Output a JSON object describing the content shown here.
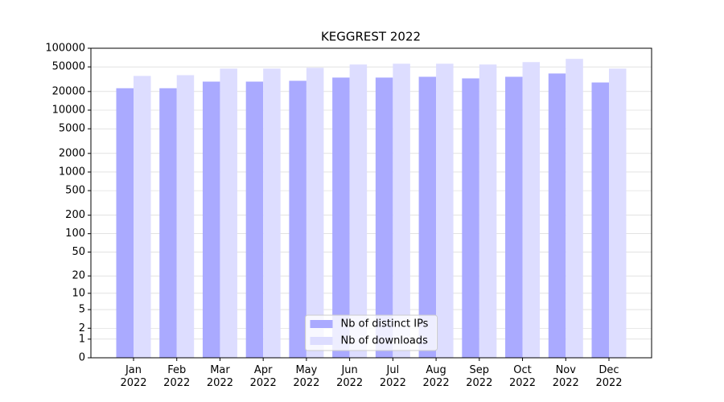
{
  "chart_data": {
    "type": "bar",
    "title": "KEGGREST 2022",
    "categories": [
      "Jan 2022",
      "Feb 2022",
      "Mar 2022",
      "Apr 2022",
      "May 2022",
      "Jun 2022",
      "Jul 2022",
      "Aug 2022",
      "Sep 2022",
      "Oct 2022",
      "Nov 2022",
      "Dec 2022"
    ],
    "series": [
      {
        "name": "Nb of distinct IPs",
        "color": "#aaaaff",
        "values": [
          22600,
          22600,
          28900,
          28900,
          29800,
          33600,
          33600,
          34600,
          32600,
          34600,
          39100,
          28000
        ]
      },
      {
        "name": "Nb of downloads",
        "color": "#ddddff",
        "values": [
          35700,
          36700,
          46900,
          46900,
          48300,
          54600,
          56200,
          56200,
          54600,
          59700,
          67400,
          46900
        ]
      }
    ],
    "yscale": "log1p",
    "ylim": [
      0,
      100000
    ],
    "yticks": [
      0,
      1,
      2,
      5,
      10,
      20,
      50,
      100,
      200,
      500,
      1000,
      2000,
      5000,
      10000,
      20000,
      50000,
      100000
    ],
    "grid": true,
    "legend": "lower center"
  }
}
